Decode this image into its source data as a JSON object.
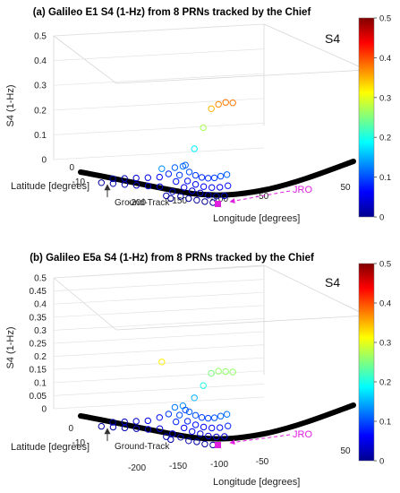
{
  "chart_data": [
    {
      "type": "scatter",
      "title": "(a) Galileo E1 S4 (1-Hz) from 8 PRNs tracked by the Chief",
      "zlabel": "S4 (1-Hz)",
      "xlabel": "Longitude [degrees]",
      "ylabel": "Latitude [degrees]",
      "colorbar_label": "S4",
      "zlim": [
        0,
        0.5
      ],
      "z_ticks": [
        "0",
        "0.1",
        "0.2",
        "0.3",
        "0.4",
        "0.5"
      ],
      "x_ticks": [
        "-200",
        "-150",
        "-100",
        "-50",
        "50"
      ],
      "y_ticks": [
        "0",
        "-10"
      ],
      "colorbar_ticks": [
        "0",
        "0.1",
        "0.2",
        "0.3",
        "0.4",
        "0.5"
      ],
      "clim": [
        0,
        0.5
      ],
      "annotations": {
        "ground_track": "Ground-Track",
        "station": "JRO"
      },
      "series": [
        {
          "points": [
            [
              -110,
              -11,
              0.13
            ],
            [
              -105,
              -11,
              0.02
            ],
            [
              -100,
              -11,
              0.01
            ]
          ]
        },
        {
          "points": [
            [
              -100,
              -10,
              0.035
            ],
            [
              -90,
              -10.5,
              0.02
            ],
            [
              -80,
              -11,
              0.015
            ],
            [
              -70,
              -11.5,
              0.012
            ],
            [
              -60,
              -12,
              0.01
            ],
            [
              -50,
              -12.5,
              0.01
            ]
          ]
        },
        {
          "points": [
            [
              -100,
              -8,
              0.07
            ],
            [
              -90,
              -8.5,
              0.05
            ],
            [
              -80,
              -9,
              0.04
            ],
            [
              -70,
              -9.5,
              0.035
            ],
            [
              -60,
              -10,
              0.03
            ],
            [
              -50,
              -10.5,
              0.03
            ],
            [
              -40,
              -11,
              0.035
            ]
          ]
        },
        {
          "points": [
            [
              -100,
              -6,
              0.09
            ],
            [
              -90,
              -6.5,
              0.07
            ],
            [
              -80,
              -7,
              0.06
            ],
            [
              -70,
              -7.5,
              0.055
            ],
            [
              -60,
              -8,
              0.055
            ],
            [
              -50,
              -8.5,
              0.06
            ],
            [
              -40,
              -9,
              0.07
            ]
          ]
        },
        {
          "points": [
            [
              -100,
              -4,
              0.12
            ],
            [
              -92,
              -4.5,
              0.1
            ],
            [
              -84,
              -5,
              0.09
            ],
            [
              -76,
              -5.5,
              0.085
            ],
            [
              -68,
              -6,
              0.085
            ],
            [
              -60,
              -6.5,
              0.09
            ],
            [
              -52,
              -7,
              0.1
            ],
            [
              -44,
              -7.5,
              0.11
            ]
          ]
        },
        {
          "points": [
            [
              -105,
              0,
              0.11
            ],
            [
              -95,
              0,
              0.18
            ],
            [
              -85,
              0,
              0.27
            ],
            [
              -76,
              0,
              0.35
            ],
            [
              -68,
              0,
              0.37
            ],
            [
              -60,
              0,
              0.38
            ],
            [
              -52,
              0,
              0.38
            ]
          ]
        },
        {
          "points": [
            [
              -190,
              2,
              0.02
            ],
            [
              -175,
              1,
              0.03
            ],
            [
              -160,
              0,
              0.04
            ],
            [
              -145,
              -1,
              0.05
            ],
            [
              -130,
              -2,
              0.06
            ],
            [
              -118,
              -3,
              0.08
            ],
            [
              -110,
              -3.5,
              0.11
            ]
          ]
        },
        {
          "points": [
            [
              -195,
              -2,
              0.015
            ],
            [
              -180,
              -3,
              0.02
            ],
            [
              -165,
              -4,
              0.025
            ],
            [
              -150,
              -5,
              0.03
            ],
            [
              -135,
              -6,
              0.035
            ],
            [
              -120,
              -7,
              0.04
            ]
          ]
        }
      ]
    },
    {
      "type": "scatter",
      "title": "(b) Galileo E5a S4 (1-Hz) from 8 PRNs tracked by the Chief",
      "zlabel": "S4 (1-Hz)",
      "xlabel": "Longitude [degrees]",
      "ylabel": "Latitude [degrees]",
      "colorbar_label": "S4",
      "zlim": [
        0,
        0.5
      ],
      "z_ticks": [
        "0",
        "0.05",
        "0.1",
        "0.15",
        "0.2",
        "0.25",
        "0.3",
        "0.35",
        "0.4",
        "0.45",
        "0.5"
      ],
      "x_ticks": [
        "-200",
        "-150",
        "-100",
        "-50",
        "50"
      ],
      "y_ticks": [
        "0",
        "-10"
      ],
      "colorbar_ticks": [
        "0",
        "0.1",
        "0.2",
        "0.3",
        "0.4",
        "0.5"
      ],
      "clim": [
        0,
        0.5
      ],
      "annotations": {
        "ground_track": "Ground-Track",
        "station": "JRO"
      },
      "series": [
        {
          "points": [
            [
              -110,
              -11,
              0.32
            ],
            [
              -105,
              -11,
              0.03
            ],
            [
              -100,
              -11,
              0.02
            ]
          ]
        },
        {
          "points": [
            [
              -100,
              -10,
              0.04
            ],
            [
              -90,
              -10.5,
              0.03
            ],
            [
              -80,
              -11,
              0.02
            ],
            [
              -70,
              -11.5,
              0.02
            ],
            [
              -60,
              -12,
              0.015
            ],
            [
              -50,
              -12.5,
              0.015
            ]
          ]
        },
        {
          "points": [
            [
              -100,
              -8,
              0.08
            ],
            [
              -90,
              -8.5,
              0.06
            ],
            [
              -80,
              -9,
              0.05
            ],
            [
              -70,
              -9.5,
              0.045
            ],
            [
              -60,
              -10,
              0.04
            ],
            [
              -50,
              -10.5,
              0.04
            ],
            [
              -40,
              -11,
              0.045
            ]
          ]
        },
        {
          "points": [
            [
              -100,
              -6,
              0.1
            ],
            [
              -90,
              -6.5,
              0.08
            ],
            [
              -80,
              -7,
              0.07
            ],
            [
              -70,
              -7.5,
              0.065
            ],
            [
              -60,
              -8,
              0.065
            ],
            [
              -50,
              -8.5,
              0.07
            ],
            [
              -40,
              -9,
              0.08
            ]
          ]
        },
        {
          "points": [
            [
              -100,
              -4,
              0.13
            ],
            [
              -92,
              -4.5,
              0.11
            ],
            [
              -84,
              -5,
              0.1
            ],
            [
              -76,
              -5.5,
              0.095
            ],
            [
              -68,
              -6,
              0.095
            ],
            [
              -60,
              -6.5,
              0.1
            ],
            [
              -52,
              -7,
              0.11
            ],
            [
              -44,
              -7.5,
              0.12
            ]
          ]
        },
        {
          "points": [
            [
              -105,
              0,
              0.1
            ],
            [
              -95,
              0,
              0.15
            ],
            [
              -85,
              0,
              0.2
            ],
            [
              -76,
              0,
              0.25
            ],
            [
              -68,
              0,
              0.26
            ],
            [
              -60,
              0,
              0.26
            ],
            [
              -52,
              0,
              0.26
            ]
          ]
        },
        {
          "points": [
            [
              -190,
              2,
              0.02
            ],
            [
              -175,
              1,
              0.03
            ],
            [
              -160,
              0,
              0.04
            ],
            [
              -145,
              -1,
              0.05
            ],
            [
              -130,
              -2,
              0.07
            ],
            [
              -118,
              -3,
              0.09
            ],
            [
              -110,
              -3.5,
              0.12
            ]
          ]
        },
        {
          "points": [
            [
              -195,
              -2,
              0.015
            ],
            [
              -180,
              -3,
              0.02
            ],
            [
              -165,
              -4,
              0.025
            ],
            [
              -150,
              -5,
              0.03
            ],
            [
              -135,
              -6,
              0.035
            ],
            [
              -120,
              -7,
              0.045
            ]
          ]
        }
      ]
    }
  ]
}
